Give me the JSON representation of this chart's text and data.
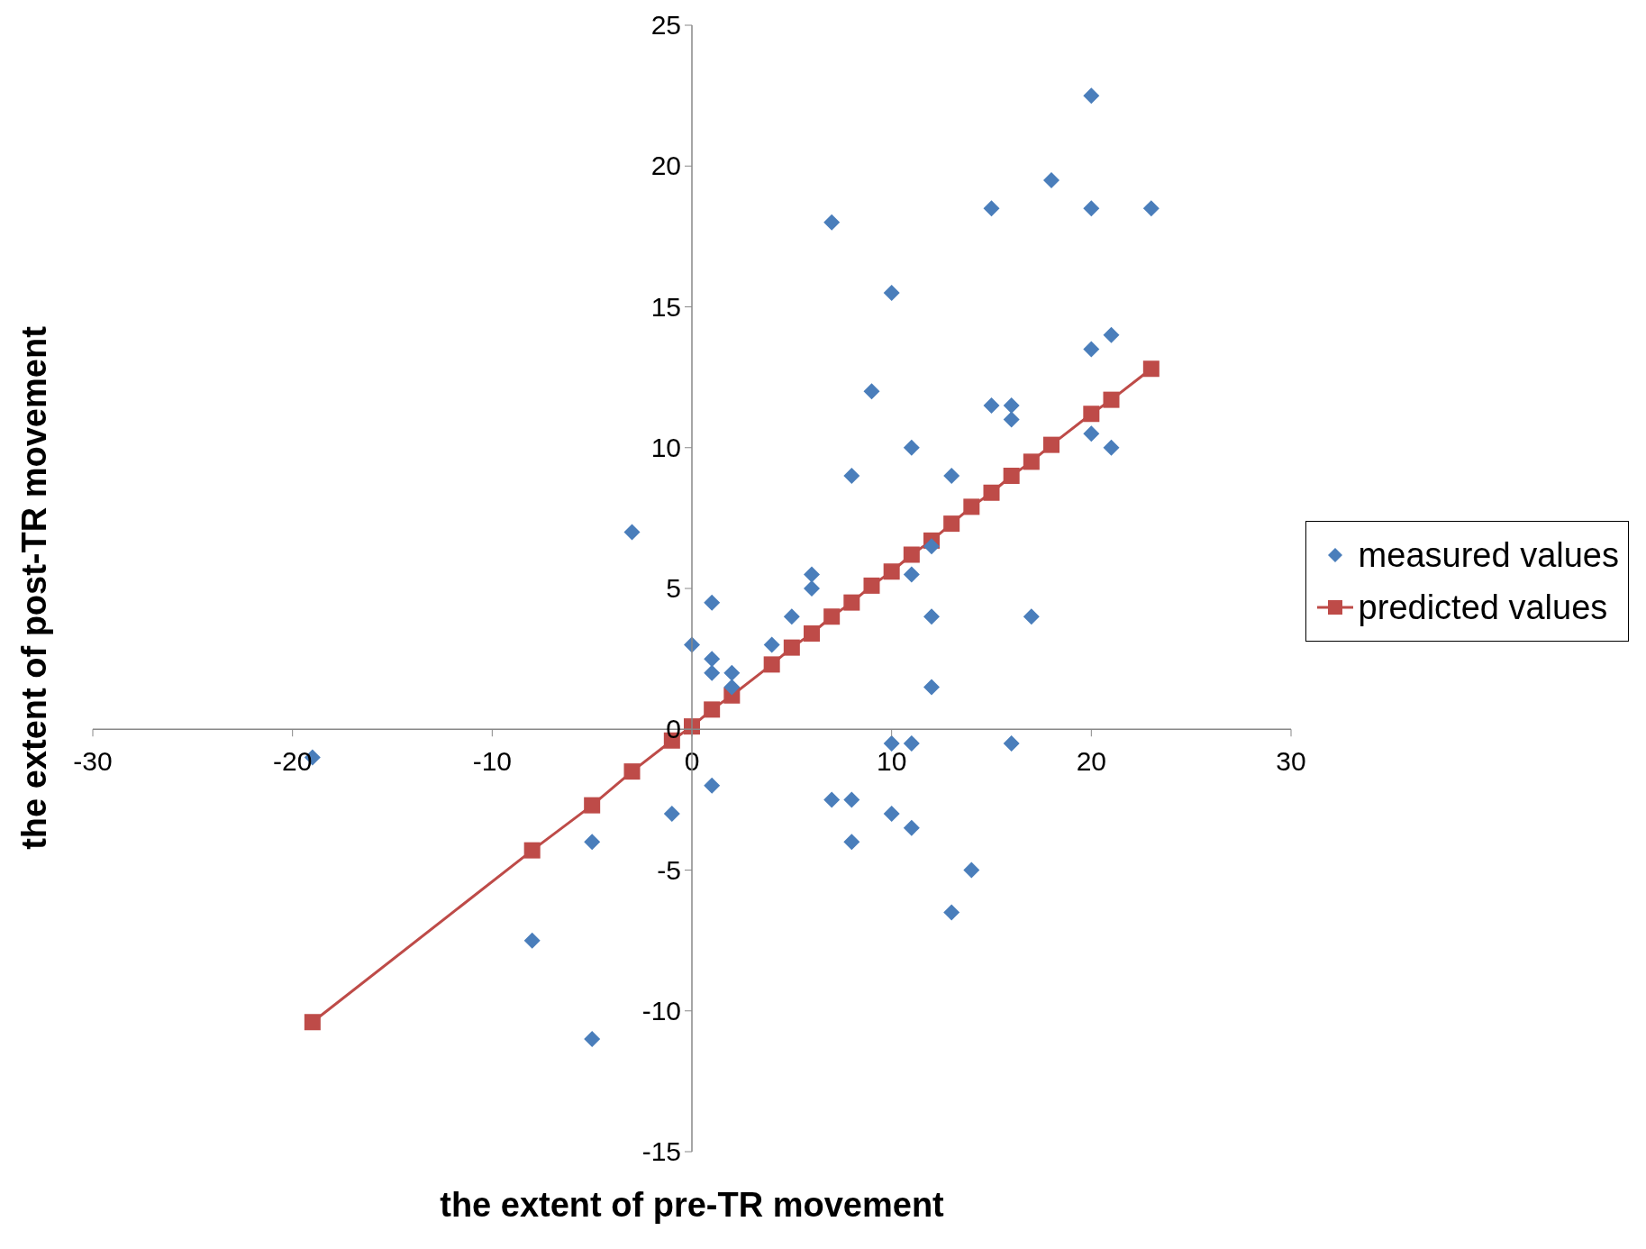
{
  "chart_data": {
    "type": "scatter",
    "xlabel": "the extent of pre-TR movement",
    "ylabel": "the extent of post-TR movement",
    "xlim": [
      -30,
      30
    ],
    "xticks": [
      -30,
      -20,
      -10,
      0,
      10,
      20,
      30
    ],
    "ylim": [
      -15,
      25
    ],
    "yticks": [
      -15,
      -10,
      -5,
      0,
      5,
      10,
      15,
      20,
      25
    ],
    "grid": false,
    "legend": "right",
    "series": [
      {
        "name": "measured values",
        "marker": "diamond",
        "color": "#4a7ebb",
        "x": [
          -19,
          -3,
          -5,
          -8,
          -5,
          -1,
          0,
          1,
          1,
          1,
          1,
          2,
          2,
          4,
          5,
          6,
          6,
          7,
          7,
          8,
          8,
          8,
          9,
          10,
          10,
          10,
          11,
          11,
          11,
          11,
          12,
          12,
          12,
          13,
          13,
          14,
          15,
          15,
          16,
          16,
          16,
          17,
          18,
          20,
          20,
          20,
          20,
          21,
          21,
          23
        ],
        "values": [
          -1,
          7,
          -4,
          -7.5,
          -11,
          -3,
          3,
          4.5,
          2.5,
          2,
          -2,
          2,
          1.5,
          3,
          4,
          5.5,
          5,
          18,
          -2.5,
          9,
          -2.5,
          -4,
          12,
          15.5,
          -0.5,
          -3,
          10,
          5.5,
          -0.5,
          -3.5,
          6.5,
          4,
          1.5,
          9,
          -6.5,
          -5,
          18.5,
          11.5,
          11.5,
          11,
          -0.5,
          4,
          19.5,
          22.5,
          18.5,
          13.5,
          10.5,
          14,
          10,
          18.5
        ]
      },
      {
        "name": "predicted values",
        "type": "line",
        "marker": "square",
        "line_style": "solid",
        "color": "#be4b48",
        "x": [
          -19,
          -8,
          -5,
          -3,
          -1,
          0,
          1,
          2,
          4,
          5,
          6,
          7,
          8,
          9,
          10,
          11,
          12,
          13,
          14,
          15,
          16,
          17,
          18,
          20,
          21,
          23
        ],
        "values": [
          -10.4,
          -4.3,
          -2.7,
          -1.5,
          -0.4,
          0.1,
          0.7,
          1.2,
          2.3,
          2.9,
          3.4,
          4.0,
          4.5,
          5.1,
          5.6,
          6.2,
          6.7,
          7.3,
          7.9,
          8.4,
          9.0,
          9.5,
          10.1,
          11.2,
          11.7,
          12.8
        ]
      }
    ]
  }
}
